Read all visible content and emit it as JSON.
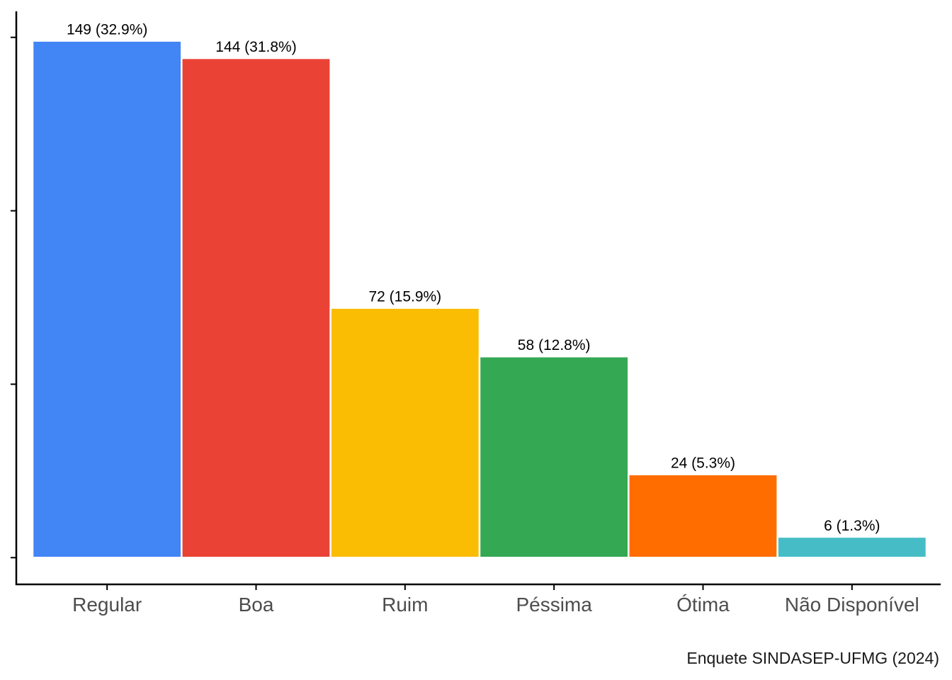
{
  "chart_data": {
    "type": "bar",
    "title": "",
    "xlabel": "",
    "ylabel": "",
    "caption": "Enquete SINDASEP-UFMG (2024)",
    "categories": [
      "Regular",
      "Boa",
      "Ruim",
      "Péssima",
      "Ótima",
      "Não Disponível"
    ],
    "values": [
      149,
      144,
      72,
      58,
      24,
      6
    ],
    "data_labels": [
      "149 (32.9%)",
      "144 (31.8%)",
      "72 (15.9%)",
      "58 (12.8%)",
      "24 (5.3%)",
      "6 (1.3%)"
    ],
    "colors": [
      "#4285F4",
      "#EA4335",
      "#FBBC04",
      "#34A853",
      "#FF6D01",
      "#46BDC6"
    ],
    "ylim": [
      -7.5,
      157.5
    ],
    "y_ticks": [
      0,
      50,
      100,
      150
    ],
    "y_tick_labels_shown": false,
    "grid": false,
    "legend": "none"
  }
}
